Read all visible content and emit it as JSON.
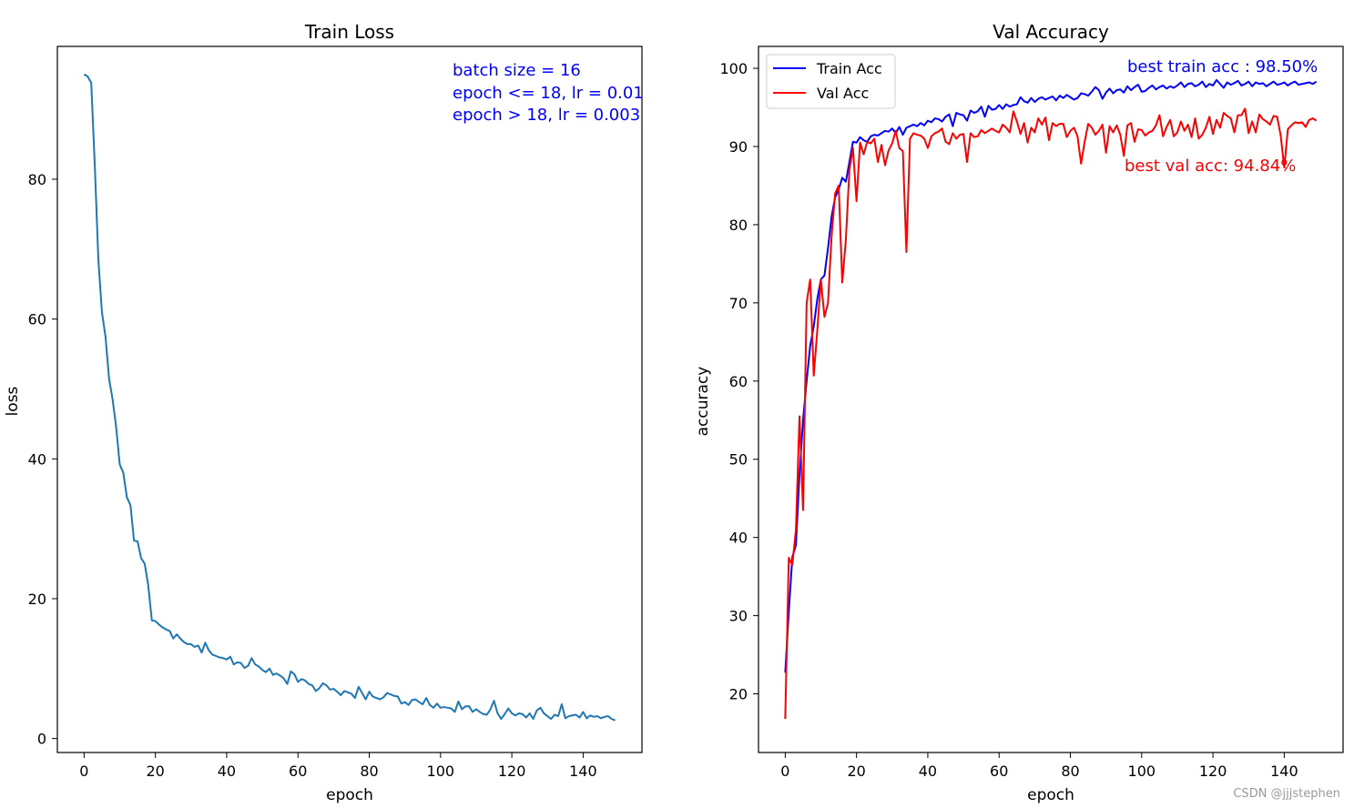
{
  "chart_data": [
    {
      "type": "line",
      "title": "Train Loss",
      "xlabel": "epoch",
      "ylabel": "loss",
      "xlim": [
        -7.5,
        156.5
      ],
      "ylim": [
        -2,
        99
      ],
      "xticks": [
        0,
        20,
        40,
        60,
        80,
        100,
        120,
        140
      ],
      "yticks": [
        0,
        20,
        40,
        60,
        80
      ],
      "grid": false,
      "annotations": [
        "batch size = 16",
        "epoch <= 18, lr = 0.01",
        "epoch > 18, lr = 0.003"
      ],
      "series": [
        {
          "name": "loss",
          "color": "#1f77b4",
          "x_start": 0,
          "values": [
            95.0,
            94.7,
            93.8,
            82.0,
            68.5,
            61.0,
            57.5,
            51.5,
            48.5,
            44.5,
            39.2,
            38.0,
            34.5,
            33.4,
            28.3,
            28.2,
            25.8,
            25.0,
            21.9,
            16.9,
            16.8,
            16.3,
            15.9,
            15.6,
            15.4,
            14.3,
            14.9,
            14.3,
            13.8,
            13.5,
            13.5,
            13.1,
            13.3,
            12.3,
            13.7,
            12.6,
            12.0,
            11.8,
            11.6,
            11.5,
            11.3,
            11.7,
            10.6,
            10.9,
            10.8,
            10.1,
            10.4,
            11.5,
            10.6,
            10.3,
            9.8,
            9.5,
            10.0,
            9.1,
            9.3,
            9.0,
            8.6,
            7.8,
            9.6,
            9.2,
            8.1,
            8.5,
            8.3,
            7.8,
            7.6,
            6.8,
            7.2,
            7.9,
            7.6,
            7.0,
            7.1,
            6.7,
            6.2,
            6.8,
            6.6,
            6.4,
            5.8,
            7.4,
            6.5,
            5.6,
            6.7,
            6.0,
            5.8,
            5.6,
            5.9,
            6.5,
            6.3,
            6.1,
            6.0,
            5.0,
            5.2,
            4.8,
            5.5,
            5.6,
            5.2,
            4.9,
            5.8,
            4.8,
            4.4,
            5.0,
            4.4,
            4.5,
            4.4,
            4.3,
            3.8,
            5.3,
            4.2,
            4.6,
            4.6,
            3.8,
            4.2,
            3.8,
            3.5,
            3.4,
            4.2,
            5.4,
            3.6,
            2.8,
            3.5,
            4.3,
            3.6,
            3.3,
            3.6,
            3.5,
            3.0,
            3.6,
            2.8,
            4.0,
            4.4,
            3.6,
            3.2,
            2.8,
            3.4,
            3.2,
            4.9,
            2.9,
            3.2,
            3.3,
            3.4,
            3.0,
            3.8,
            2.9,
            3.3,
            3.1,
            3.2,
            2.9,
            3.1,
            3.2,
            2.8,
            2.6
          ]
        }
      ]
    },
    {
      "type": "line",
      "title": "Val Accuracy",
      "xlabel": "epoch",
      "ylabel": "accuracy",
      "xlim": [
        -7.5,
        156.5
      ],
      "ylim": [
        12.5,
        102.8
      ],
      "xticks": [
        0,
        20,
        40,
        60,
        80,
        100,
        120,
        140
      ],
      "yticks": [
        20,
        30,
        40,
        50,
        60,
        70,
        80,
        90,
        100
      ],
      "grid": false,
      "legend_position": "upper-left",
      "annotations": [
        "best train acc : 98.50%",
        "best val acc: 94.84%"
      ],
      "series": [
        {
          "name": "Train Acc",
          "color": "#0000ff",
          "x_start": 0,
          "values": [
            22.7,
            30.5,
            37.5,
            39.0,
            48.0,
            55.0,
            60.0,
            64.5,
            67.0,
            70.5,
            73.0,
            73.5,
            77.0,
            81.0,
            83.5,
            84.5,
            86.0,
            85.5,
            88.0,
            90.6,
            90.5,
            91.2,
            90.8,
            90.6,
            91.3,
            91.5,
            91.4,
            91.7,
            92.0,
            91.9,
            92.3,
            91.7,
            92.5,
            91.5,
            92.4,
            92.6,
            92.8,
            92.6,
            93.0,
            92.7,
            93.3,
            93.1,
            93.6,
            93.5,
            93.2,
            93.8,
            94.1,
            92.6,
            94.3,
            94.1,
            94.0,
            93.3,
            94.6,
            94.3,
            94.5,
            95.1,
            93.8,
            95.2,
            94.7,
            94.8,
            95.3,
            94.8,
            95.4,
            95.1,
            95.3,
            95.4,
            96.3,
            95.8,
            95.6,
            96.2,
            95.7,
            96.1,
            96.3,
            96.0,
            96.2,
            96.4,
            95.9,
            96.5,
            96.2,
            96.6,
            96.3,
            96.0,
            96.2,
            96.8,
            96.7,
            96.5,
            97.0,
            97.6,
            97.2,
            96.1,
            96.9,
            97.4,
            96.8,
            97.2,
            97.3,
            96.9,
            97.7,
            97.2,
            97.6,
            97.9,
            97.0,
            97.1,
            97.5,
            97.8,
            97.3,
            97.6,
            97.8,
            97.4,
            97.7,
            97.5,
            97.8,
            98.2,
            97.6,
            98.0,
            98.1,
            97.7,
            97.9,
            98.3,
            97.6,
            98.0,
            97.8,
            98.5,
            98.0,
            97.5,
            98.2,
            97.9,
            98.1,
            98.4,
            97.8,
            98.0,
            98.3,
            97.7,
            98.2,
            98.0,
            98.1,
            97.7,
            98.0,
            98.3,
            97.9,
            98.0,
            98.2,
            97.8,
            98.1,
            98.3,
            97.9,
            98.0,
            98.1,
            98.2,
            98.0,
            98.3
          ]
        },
        {
          "name": "Val Acc",
          "color": "#ff0000",
          "x_start": 0,
          "values": [
            16.8,
            37.4,
            36.5,
            41.0,
            55.5,
            43.5,
            70.0,
            73.0,
            60.7,
            66.5,
            73.0,
            68.2,
            70.0,
            78.5,
            84.0,
            85.0,
            72.6,
            78.0,
            87.0,
            89.8,
            83.0,
            90.5,
            89.0,
            90.6,
            90.4,
            91.0,
            88.0,
            90.2,
            87.6,
            89.5,
            90.4,
            92.0,
            89.8,
            89.4,
            76.5,
            91.0,
            91.7,
            91.5,
            91.4,
            91.0,
            89.8,
            91.3,
            91.7,
            91.9,
            92.3,
            90.6,
            90.3,
            91.7,
            91.0,
            91.5,
            91.6,
            88.0,
            91.7,
            91.2,
            91.3,
            92.1,
            91.7,
            92.0,
            92.3,
            92.0,
            91.8,
            92.8,
            92.4,
            91.8,
            94.5,
            93.2,
            91.6,
            93.0,
            90.5,
            92.4,
            91.8,
            93.6,
            92.8,
            93.7,
            90.8,
            93.0,
            92.6,
            92.9,
            92.9,
            91.2,
            92.0,
            92.4,
            91.3,
            87.8,
            90.6,
            92.9,
            92.4,
            91.5,
            92.0,
            92.8,
            89.2,
            92.6,
            91.8,
            92.7,
            91.5,
            88.8,
            92.7,
            93.0,
            90.6,
            92.2,
            92.1,
            91.4,
            91.8,
            92.0,
            92.7,
            94.0,
            91.3,
            92.5,
            93.4,
            91.3,
            91.8,
            93.2,
            92.0,
            92.8,
            91.2,
            93.6,
            91.0,
            91.5,
            92.4,
            93.8,
            91.6,
            93.4,
            92.4,
            94.3,
            93.9,
            93.6,
            91.8,
            94.0,
            94.0,
            94.84,
            91.7,
            93.2,
            91.8,
            94.1,
            93.5,
            93.2,
            92.8,
            93.9,
            93.8,
            91.4,
            87.3,
            92.2,
            92.7,
            93.1,
            93.0,
            93.1,
            92.5,
            93.4,
            93.6,
            93.3
          ]
        }
      ]
    }
  ],
  "watermark": "CSDN @jjjstephen"
}
